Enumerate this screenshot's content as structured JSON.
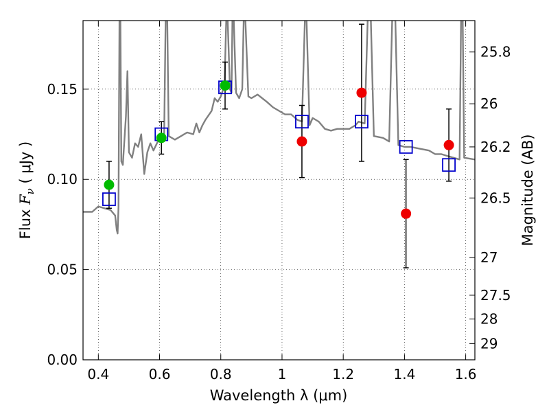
{
  "chart_data": {
    "type": "scatter",
    "xlabel": "Wavelength  λ (μm)",
    "ylabel_prefix": "Flux ",
    "ylabel_symbol": "F",
    "ylabel_subscript": "ν",
    "ylabel_suffix": "  ( μJy )",
    "y2label": "Magnitude (AB)",
    "xlim": [
      0.35,
      1.63
    ],
    "ylim": [
      0.0,
      0.188
    ],
    "x_ticks": [
      0.4,
      0.6,
      0.8,
      1.0,
      1.2,
      1.4,
      1.6
    ],
    "x_tick_labels": [
      "0.4",
      "0.6",
      "0.8",
      "1",
      "1.2",
      "1.4",
      "1.6"
    ],
    "y_ticks": [
      0.0,
      0.05,
      0.1,
      0.15
    ],
    "y_tick_labels": [
      "0.00",
      "0.05",
      "0.10",
      "0.15"
    ],
    "y2_ticks": [
      {
        "flux": 0.1706,
        "label": "25.8"
      },
      {
        "flux": 0.1419,
        "label": "26"
      },
      {
        "flux": 0.118,
        "label": "26.2"
      },
      {
        "flux": 0.0897,
        "label": "26.5"
      },
      {
        "flux": 0.0567,
        "label": "27"
      },
      {
        "flux": 0.0358,
        "label": "27.5"
      },
      {
        "flux": 0.0226,
        "label": "28"
      },
      {
        "flux": 0.009,
        "label": "29"
      }
    ],
    "grid": true,
    "colors": {
      "green": "#00bb00",
      "red": "#ee0000",
      "square": "#0000cc",
      "model": "#808080",
      "error": "#000000"
    },
    "series": [
      {
        "marker": "circle-green",
        "points": [
          {
            "x": 0.435,
            "y": 0.097,
            "err": 0.013
          },
          {
            "x": 0.606,
            "y": 0.123,
            "err": 0.009
          },
          {
            "x": 0.814,
            "y": 0.152,
            "err": 0.013
          }
        ]
      },
      {
        "marker": "circle-red",
        "points": [
          {
            "x": 1.065,
            "y": 0.121,
            "err": 0.02
          },
          {
            "x": 1.26,
            "y": 0.148,
            "err": 0.038
          },
          {
            "x": 1.405,
            "y": 0.081,
            "err": 0.03
          },
          {
            "x": 1.545,
            "y": 0.119,
            "err": 0.02
          }
        ]
      },
      {
        "marker": "square-open-blue",
        "points": [
          {
            "x": 0.435,
            "y": 0.089
          },
          {
            "x": 0.606,
            "y": 0.125
          },
          {
            "x": 0.814,
            "y": 0.151
          },
          {
            "x": 1.065,
            "y": 0.132
          },
          {
            "x": 1.26,
            "y": 0.132
          },
          {
            "x": 1.405,
            "y": 0.118
          },
          {
            "x": 1.545,
            "y": 0.108
          }
        ]
      },
      {
        "marker": "line-model",
        "points": [
          [
            0.35,
            0.082
          ],
          [
            0.38,
            0.082
          ],
          [
            0.4,
            0.085
          ],
          [
            0.42,
            0.084
          ],
          [
            0.44,
            0.083
          ],
          [
            0.455,
            0.08
          ],
          [
            0.46,
            0.072
          ],
          [
            0.463,
            0.07
          ],
          [
            0.466,
            0.085
          ],
          [
            0.469,
            0.19
          ],
          [
            0.472,
            0.19
          ],
          [
            0.475,
            0.11
          ],
          [
            0.48,
            0.108
          ],
          [
            0.49,
            0.135
          ],
          [
            0.495,
            0.16
          ],
          [
            0.5,
            0.115
          ],
          [
            0.51,
            0.112
          ],
          [
            0.52,
            0.12
          ],
          [
            0.53,
            0.118
          ],
          [
            0.54,
            0.125
          ],
          [
            0.55,
            0.103
          ],
          [
            0.56,
            0.115
          ],
          [
            0.57,
            0.12
          ],
          [
            0.58,
            0.116
          ],
          [
            0.6,
            0.123
          ],
          [
            0.615,
            0.124
          ],
          [
            0.62,
            0.19
          ],
          [
            0.625,
            0.19
          ],
          [
            0.63,
            0.124
          ],
          [
            0.65,
            0.122
          ],
          [
            0.67,
            0.124
          ],
          [
            0.69,
            0.126
          ],
          [
            0.71,
            0.125
          ],
          [
            0.72,
            0.131
          ],
          [
            0.73,
            0.126
          ],
          [
            0.74,
            0.13
          ],
          [
            0.75,
            0.133
          ],
          [
            0.77,
            0.138
          ],
          [
            0.78,
            0.145
          ],
          [
            0.79,
            0.143
          ],
          [
            0.8,
            0.146
          ],
          [
            0.812,
            0.152
          ],
          [
            0.818,
            0.19
          ],
          [
            0.822,
            0.19
          ],
          [
            0.83,
            0.15
          ],
          [
            0.835,
            0.148
          ],
          [
            0.838,
            0.19
          ],
          [
            0.842,
            0.19
          ],
          [
            0.85,
            0.148
          ],
          [
            0.86,
            0.145
          ],
          [
            0.87,
            0.15
          ],
          [
            0.875,
            0.19
          ],
          [
            0.88,
            0.19
          ],
          [
            0.89,
            0.146
          ],
          [
            0.9,
            0.145
          ],
          [
            0.92,
            0.147
          ],
          [
            0.95,
            0.143
          ],
          [
            0.97,
            0.14
          ],
          [
            0.99,
            0.138
          ],
          [
            1.01,
            0.136
          ],
          [
            1.03,
            0.136
          ],
          [
            1.05,
            0.133
          ],
          [
            1.065,
            0.132
          ],
          [
            1.075,
            0.19
          ],
          [
            1.08,
            0.19
          ],
          [
            1.09,
            0.13
          ],
          [
            1.1,
            0.134
          ],
          [
            1.12,
            0.132
          ],
          [
            1.14,
            0.128
          ],
          [
            1.16,
            0.127
          ],
          [
            1.18,
            0.128
          ],
          [
            1.2,
            0.128
          ],
          [
            1.22,
            0.128
          ],
          [
            1.24,
            0.13
          ],
          [
            1.25,
            0.132
          ],
          [
            1.27,
            0.131
          ],
          [
            1.28,
            0.19
          ],
          [
            1.29,
            0.19
          ],
          [
            1.3,
            0.124
          ],
          [
            1.33,
            0.123
          ],
          [
            1.35,
            0.121
          ],
          [
            1.36,
            0.19
          ],
          [
            1.37,
            0.19
          ],
          [
            1.38,
            0.119
          ],
          [
            1.4,
            0.118
          ],
          [
            1.42,
            0.118
          ],
          [
            1.45,
            0.117
          ],
          [
            1.48,
            0.116
          ],
          [
            1.5,
            0.114
          ],
          [
            1.52,
            0.114
          ],
          [
            1.54,
            0.113
          ],
          [
            1.56,
            0.112
          ],
          [
            1.58,
            0.111
          ],
          [
            1.585,
            0.19
          ],
          [
            1.59,
            0.19
          ],
          [
            1.595,
            0.112
          ],
          [
            1.63,
            0.111
          ]
        ]
      }
    ]
  }
}
